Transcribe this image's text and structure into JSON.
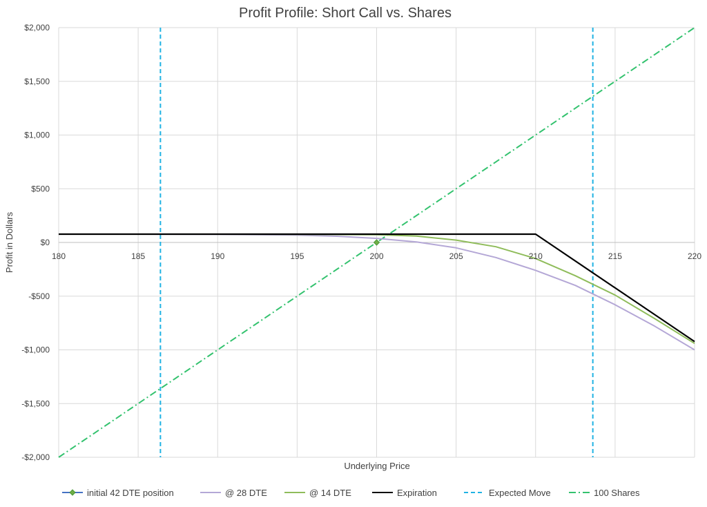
{
  "chart_data": {
    "type": "line",
    "title": "Profit Profile: Short Call vs. Shares",
    "xlabel": "Underlying Price",
    "ylabel": "Profit in Dollars",
    "xlim": [
      180,
      220
    ],
    "ylim": [
      -2000,
      2000
    ],
    "x_ticks": [
      180,
      185,
      190,
      195,
      200,
      205,
      210,
      215,
      220
    ],
    "y_ticks": [
      {
        "value": 2000,
        "label": "$2,000"
      },
      {
        "value": 1500,
        "label": "$1,500"
      },
      {
        "value": 1000,
        "label": "$1,000"
      },
      {
        "value": 500,
        "label": "$500"
      },
      {
        "value": 0,
        "label": "$0"
      },
      {
        "value": -500,
        "label": "-$500"
      },
      {
        "value": -1000,
        "label": "-$1,000"
      },
      {
        "value": -1500,
        "label": "-$1,500"
      },
      {
        "value": -2000,
        "label": "-$2,000"
      }
    ],
    "grid": "vertical and horizontal",
    "legend_position": "bottom",
    "series": [
      {
        "name": "initial 42 DTE position",
        "color": "#4472c4",
        "marker": "diamond",
        "marker_color": "#70ad47",
        "style": "solid",
        "points": [
          [
            200,
            0
          ]
        ]
      },
      {
        "name": "@ 28 DTE",
        "color": "#b4a7d6",
        "style": "solid",
        "points": [
          [
            180,
            77
          ],
          [
            185,
            77
          ],
          [
            190,
            75
          ],
          [
            195,
            68
          ],
          [
            197.5,
            58
          ],
          [
            200,
            38
          ],
          [
            202.5,
            5
          ],
          [
            205,
            -50
          ],
          [
            207.5,
            -140
          ],
          [
            210,
            -260
          ],
          [
            212.5,
            -400
          ],
          [
            215,
            -580
          ],
          [
            217.5,
            -780
          ],
          [
            220,
            -1000
          ]
        ]
      },
      {
        "name": "@ 14 DTE",
        "color": "#8fbc5a",
        "style": "solid",
        "points": [
          [
            180,
            77
          ],
          [
            185,
            77
          ],
          [
            190,
            77
          ],
          [
            195,
            75
          ],
          [
            200,
            72
          ],
          [
            202.5,
            60
          ],
          [
            205,
            22
          ],
          [
            207.5,
            -40
          ],
          [
            210,
            -150
          ],
          [
            212.5,
            -310
          ],
          [
            215,
            -490
          ],
          [
            217.5,
            -710
          ],
          [
            220,
            -940
          ]
        ]
      },
      {
        "name": "Expiration",
        "color": "#000000",
        "style": "solid",
        "points": [
          [
            180,
            77
          ],
          [
            210,
            77
          ],
          [
            220,
            -923
          ]
        ]
      },
      {
        "name": "Expected Move",
        "color": "#1fb2e3",
        "style": "dashed",
        "vertical_lines_at_x": [
          186.4,
          213.6
        ]
      },
      {
        "name": "100 Shares",
        "color": "#33c26e",
        "style": "dash-dot",
        "points": [
          [
            180,
            -2000
          ],
          [
            220,
            2000
          ]
        ]
      }
    ]
  }
}
